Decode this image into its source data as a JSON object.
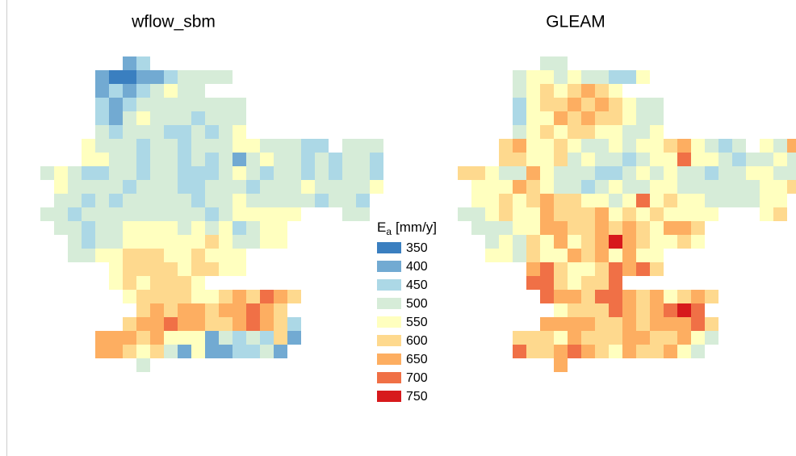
{
  "maps": [
    {
      "title": "wflow_sbm",
      "grid": [
        [
          null,
          null,
          null,
          null,
          null,
          null,
          400,
          450,
          null,
          null,
          null,
          null,
          null,
          null,
          null,
          null,
          null,
          null,
          null,
          null,
          null,
          null,
          null,
          null,
          null
        ],
        [
          null,
          null,
          null,
          null,
          400,
          350,
          350,
          400,
          400,
          450,
          500,
          500,
          500,
          500,
          null,
          null,
          null,
          null,
          null,
          null,
          null,
          null,
          null,
          null,
          null
        ],
        [
          null,
          null,
          null,
          null,
          400,
          450,
          400,
          450,
          500,
          550,
          500,
          500,
          null,
          null,
          null,
          null,
          null,
          null,
          null,
          null,
          null,
          null,
          null,
          null,
          null
        ],
        [
          null,
          null,
          null,
          null,
          450,
          400,
          450,
          500,
          500,
          500,
          500,
          500,
          500,
          500,
          500,
          null,
          null,
          null,
          null,
          null,
          null,
          null,
          null,
          null,
          null
        ],
        [
          null,
          null,
          null,
          null,
          450,
          400,
          500,
          550,
          500,
          500,
          500,
          450,
          500,
          500,
          500,
          null,
          null,
          null,
          null,
          null,
          null,
          null,
          null,
          null,
          null
        ],
        [
          null,
          null,
          null,
          null,
          500,
          450,
          500,
          500,
          500,
          450,
          450,
          500,
          450,
          500,
          550,
          null,
          null,
          null,
          null,
          null,
          null,
          null,
          null,
          null,
          null
        ],
        [
          null,
          null,
          null,
          550,
          500,
          500,
          500,
          450,
          500,
          500,
          450,
          500,
          500,
          500,
          550,
          550,
          500,
          500,
          500,
          450,
          450,
          null,
          500,
          500,
          500
        ],
        [
          null,
          null,
          null,
          550,
          550,
          500,
          500,
          450,
          500,
          500,
          450,
          500,
          450,
          500,
          400,
          500,
          550,
          500,
          500,
          450,
          500,
          450,
          500,
          500,
          450
        ],
        [
          500,
          550,
          500,
          450,
          450,
          500,
          500,
          450,
          500,
          500,
          450,
          450,
          450,
          500,
          550,
          500,
          450,
          500,
          500,
          450,
          500,
          450,
          500,
          500,
          450
        ],
        [
          null,
          550,
          500,
          500,
          500,
          500,
          450,
          500,
          500,
          500,
          450,
          450,
          500,
          500,
          500,
          450,
          500,
          500,
          500,
          550,
          500,
          500,
          500,
          500,
          550
        ],
        [
          null,
          500,
          500,
          450,
          500,
          450,
          500,
          500,
          500,
          500,
          500,
          450,
          500,
          500,
          550,
          500,
          500,
          500,
          500,
          500,
          450,
          500,
          500,
          450,
          null
        ],
        [
          500,
          500,
          450,
          500,
          500,
          500,
          500,
          500,
          500,
          500,
          500,
          500,
          450,
          500,
          550,
          550,
          550,
          550,
          550,
          null,
          null,
          null,
          500,
          500,
          null
        ],
        [
          null,
          500,
          500,
          450,
          500,
          500,
          550,
          550,
          550,
          550,
          500,
          550,
          500,
          550,
          450,
          500,
          550,
          550,
          null,
          null,
          null,
          null,
          null,
          null,
          null
        ],
        [
          null,
          null,
          500,
          450,
          500,
          500,
          550,
          550,
          550,
          550,
          550,
          550,
          600,
          550,
          500,
          500,
          550,
          550,
          null,
          null,
          null,
          null,
          null,
          null,
          null
        ],
        [
          null,
          null,
          500,
          500,
          550,
          550,
          600,
          600,
          600,
          550,
          550,
          600,
          550,
          550,
          550,
          null,
          null,
          null,
          null,
          null,
          null,
          null,
          null,
          null,
          null
        ],
        [
          null,
          null,
          null,
          null,
          null,
          550,
          600,
          600,
          600,
          600,
          550,
          600,
          600,
          550,
          550,
          null,
          null,
          null,
          null,
          null,
          null,
          null,
          null,
          null,
          null
        ],
        [
          null,
          null,
          null,
          null,
          null,
          550,
          600,
          550,
          600,
          600,
          600,
          550,
          null,
          null,
          null,
          null,
          null,
          null,
          null,
          null,
          null,
          null,
          null,
          null,
          null
        ],
        [
          null,
          null,
          null,
          null,
          null,
          null,
          550,
          600,
          600,
          600,
          600,
          550,
          550,
          600,
          650,
          600,
          700,
          650,
          600,
          null,
          null,
          null,
          null,
          null,
          null
        ],
        [
          null,
          null,
          null,
          null,
          null,
          null,
          null,
          600,
          650,
          600,
          650,
          650,
          600,
          650,
          650,
          700,
          650,
          600,
          null,
          null,
          null,
          null,
          null,
          null,
          null
        ],
        [
          null,
          null,
          null,
          null,
          null,
          null,
          600,
          650,
          650,
          700,
          650,
          650,
          600,
          600,
          650,
          700,
          650,
          600,
          450,
          null,
          null,
          null,
          null,
          null,
          null
        ],
        [
          null,
          null,
          null,
          null,
          650,
          650,
          650,
          600,
          650,
          550,
          550,
          550,
          400,
          500,
          450,
          500,
          450,
          600,
          400,
          null,
          null,
          null,
          null,
          null,
          null
        ],
        [
          null,
          null,
          null,
          null,
          650,
          650,
          600,
          550,
          600,
          500,
          400,
          550,
          400,
          400,
          450,
          450,
          500,
          400,
          null,
          null,
          null,
          null,
          null,
          null,
          null
        ],
        [
          null,
          null,
          null,
          null,
          null,
          null,
          null,
          500,
          null,
          null,
          null,
          null,
          null,
          null,
          null,
          null,
          null,
          null,
          null,
          null,
          null,
          null,
          null,
          null,
          null
        ]
      ]
    },
    {
      "title": "GLEAM",
      "grid": [
        [
          null,
          null,
          null,
          null,
          null,
          null,
          500,
          500,
          null,
          null,
          null,
          null,
          null,
          null,
          null,
          null,
          null,
          null,
          null,
          null,
          null,
          null,
          null,
          null,
          null
        ],
        [
          null,
          null,
          null,
          null,
          500,
          550,
          550,
          500,
          550,
          500,
          500,
          450,
          450,
          550,
          null,
          null,
          null,
          null,
          null,
          null,
          null,
          null,
          null,
          null,
          null
        ],
        [
          null,
          null,
          null,
          null,
          500,
          550,
          600,
          550,
          600,
          650,
          600,
          550,
          null,
          null,
          null,
          null,
          null,
          null,
          null,
          null,
          null,
          null,
          null,
          null,
          null
        ],
        [
          null,
          null,
          null,
          null,
          450,
          550,
          600,
          600,
          650,
          600,
          650,
          600,
          550,
          500,
          500,
          null,
          null,
          null,
          null,
          null,
          null,
          null,
          null,
          null,
          null
        ],
        [
          null,
          null,
          null,
          null,
          450,
          550,
          550,
          650,
          600,
          650,
          600,
          600,
          550,
          500,
          500,
          null,
          null,
          null,
          null,
          null,
          null,
          null,
          null,
          null,
          null
        ],
        [
          null,
          null,
          null,
          null,
          500,
          550,
          600,
          550,
          600,
          600,
          550,
          550,
          500,
          500,
          550,
          null,
          null,
          null,
          null,
          null,
          null,
          null,
          null,
          null,
          null
        ],
        [
          null,
          null,
          null,
          600,
          650,
          550,
          550,
          600,
          550,
          500,
          500,
          550,
          500,
          550,
          550,
          600,
          650,
          550,
          500,
          450,
          500,
          null,
          550,
          500,
          650
        ],
        [
          null,
          null,
          null,
          600,
          600,
          550,
          550,
          600,
          500,
          550,
          500,
          500,
          450,
          500,
          550,
          550,
          700,
          550,
          550,
          500,
          450,
          500,
          500,
          550,
          500
        ],
        [
          600,
          600,
          550,
          500,
          500,
          650,
          550,
          500,
          500,
          500,
          450,
          450,
          500,
          550,
          500,
          550,
          500,
          500,
          450,
          500,
          500,
          550,
          550,
          500,
          500
        ],
        [
          null,
          550,
          550,
          550,
          650,
          600,
          550,
          500,
          500,
          450,
          500,
          550,
          500,
          500,
          550,
          550,
          500,
          500,
          500,
          500,
          500,
          500,
          550,
          550,
          600
        ],
        [
          null,
          550,
          550,
          600,
          550,
          600,
          650,
          600,
          600,
          550,
          550,
          500,
          550,
          700,
          550,
          600,
          550,
          550,
          500,
          500,
          500,
          500,
          550,
          550,
          null
        ],
        [
          500,
          500,
          550,
          600,
          550,
          550,
          650,
          600,
          600,
          600,
          650,
          550,
          600,
          550,
          600,
          550,
          550,
          550,
          550,
          null,
          null,
          null,
          550,
          600,
          null
        ],
        [
          null,
          500,
          500,
          500,
          550,
          550,
          650,
          650,
          600,
          600,
          650,
          600,
          650,
          600,
          550,
          650,
          650,
          600,
          null,
          null,
          null,
          null,
          null,
          null,
          null
        ],
        [
          null,
          null,
          500,
          550,
          500,
          600,
          550,
          650,
          550,
          600,
          650,
          750,
          650,
          600,
          550,
          550,
          600,
          550,
          null,
          null,
          null,
          null,
          null,
          null,
          null
        ],
        [
          null,
          null,
          550,
          550,
          500,
          600,
          550,
          550,
          650,
          600,
          650,
          550,
          650,
          550,
          550,
          null,
          null,
          null,
          null,
          null,
          null,
          null,
          null,
          null,
          null
        ],
        [
          null,
          null,
          null,
          null,
          null,
          650,
          700,
          600,
          550,
          550,
          600,
          700,
          650,
          700,
          600,
          null,
          null,
          null,
          null,
          null,
          null,
          null,
          null,
          null,
          null
        ],
        [
          null,
          null,
          null,
          null,
          null,
          700,
          700,
          600,
          550,
          600,
          600,
          700,
          null,
          null,
          null,
          null,
          null,
          null,
          null,
          null,
          null,
          null,
          null,
          null,
          null
        ],
        [
          null,
          null,
          null,
          null,
          null,
          null,
          700,
          650,
          650,
          600,
          700,
          700,
          650,
          600,
          650,
          550,
          600,
          650,
          600,
          null,
          null,
          null,
          null,
          null,
          null
        ],
        [
          null,
          null,
          null,
          null,
          null,
          null,
          null,
          550,
          600,
          600,
          600,
          700,
          650,
          600,
          650,
          700,
          750,
          700,
          null,
          null,
          null,
          null,
          null,
          null,
          null
        ],
        [
          null,
          null,
          null,
          null,
          null,
          null,
          650,
          650,
          650,
          650,
          600,
          600,
          650,
          600,
          650,
          650,
          650,
          700,
          600,
          null,
          null,
          null,
          null,
          null,
          null
        ],
        [
          null,
          null,
          null,
          null,
          600,
          600,
          600,
          550,
          650,
          600,
          600,
          600,
          650,
          650,
          600,
          600,
          650,
          550,
          500,
          null,
          null,
          null,
          null,
          null,
          null
        ],
        [
          null,
          null,
          null,
          null,
          700,
          600,
          600,
          650,
          700,
          650,
          600,
          550,
          650,
          600,
          600,
          650,
          550,
          500,
          null,
          null,
          null,
          null,
          null,
          null,
          null
        ],
        [
          null,
          null,
          null,
          null,
          null,
          null,
          null,
          650,
          null,
          null,
          null,
          null,
          null,
          null,
          null,
          null,
          null,
          null,
          null,
          null,
          null,
          null,
          null,
          null,
          null
        ]
      ]
    }
  ],
  "legend": {
    "title": "E",
    "title_sub": "a",
    "title_unit": "[mm/y]",
    "classes": [
      {
        "value": 350,
        "color": "#3a7fc0"
      },
      {
        "value": 400,
        "color": "#72aad2"
      },
      {
        "value": 450,
        "color": "#acd8e6"
      },
      {
        "value": 500,
        "color": "#d6ecd8"
      },
      {
        "value": 550,
        "color": "#ffffbf"
      },
      {
        "value": 600,
        "color": "#fed98e"
      },
      {
        "value": 650,
        "color": "#fdae61"
      },
      {
        "value": 700,
        "color": "#f07046"
      },
      {
        "value": 750,
        "color": "#d7191c"
      }
    ]
  }
}
